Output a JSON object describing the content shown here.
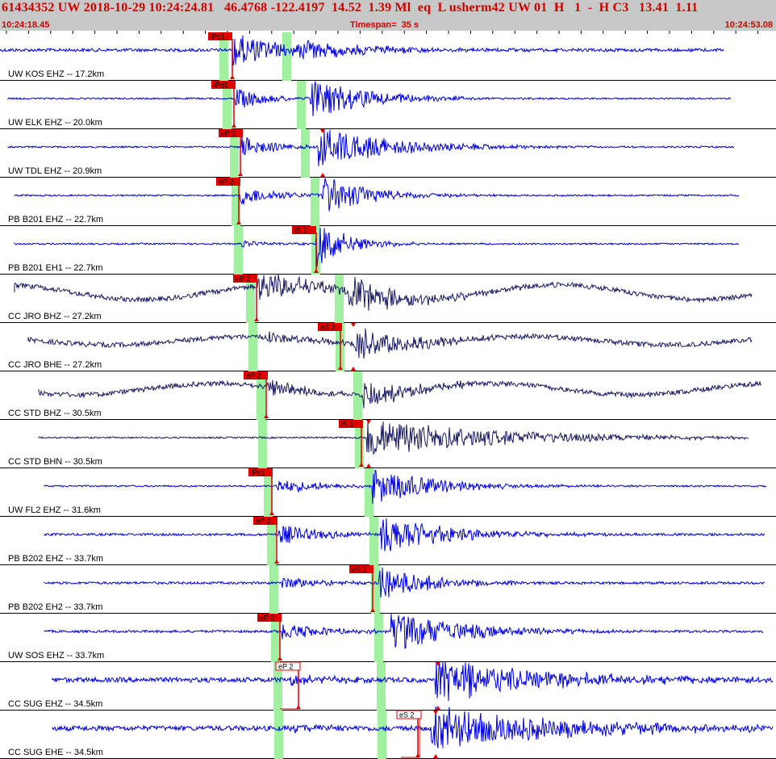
{
  "header": {
    "title": "61434352 UW 2018-10-29 10:24:24.81   46.4768 -122.4197  14.52  1.39 Ml  eq  L usherm42 UW 01  H   1  -  H C3   13.41  1.11",
    "start_time": "10:24:18.45",
    "timespan": "Timespan=  35 s",
    "end_time": "10:24:53.08"
  },
  "colors": {
    "trace_blue": "#0000e6",
    "trace_navy": "#1a1a66",
    "pick_red": "#e00000",
    "window_green": "#a0f0a0",
    "header_bg": "#c8c8c8",
    "title_red": "#d40000"
  },
  "traces": [
    {
      "label": "UW KOS EHZ -- 17.2km",
      "pick": "iPc1",
      "color": "blue"
    },
    {
      "label": "UW ELK EHZ -- 20.0km",
      "pick": "iPd1",
      "color": "blue"
    },
    {
      "label": "UW TDL EHZ -- 20.9km",
      "pick": "eP 2",
      "color": "blue"
    },
    {
      "label": "PB B201 EHZ -- 22.7km",
      "pick": "eP 2",
      "color": "blue"
    },
    {
      "label": "PB B201 EH1 -- 22.7km",
      "pick": "iS 1",
      "color": "blue"
    },
    {
      "label": "CC JRO BHZ -- 27.2km",
      "pick": "eP 2",
      "color": "navy"
    },
    {
      "label": "CC JRO BHE -- 27.2km",
      "pick": "eS 2",
      "color": "navy"
    },
    {
      "label": "CC STD BHZ -- 30.5km",
      "pick": "eP 2",
      "color": "navy"
    },
    {
      "label": "CC STD BHN -- 30.5km",
      "pick": "iS 1",
      "color": "navy"
    },
    {
      "label": "UW FL2 EHZ -- 31.6km",
      "pick": "iPc1",
      "color": "blue"
    },
    {
      "label": "PB B202 EHZ -- 33.7km",
      "pick": "eP 2",
      "color": "blue"
    },
    {
      "label": "PB B202 EH2 -- 33.7km",
      "pick": "eS 2",
      "color": "blue"
    },
    {
      "label": "UW SOS EHZ -- 33.7km",
      "pick": "eP 2",
      "color": "blue"
    },
    {
      "label": "CC SUG EHZ -- 34.5km",
      "pick": "eP 2",
      "color": "blue"
    },
    {
      "label": "CC SUG EHE -- 34.5km",
      "pick": "eS 2",
      "color": "blue"
    }
  ]
}
